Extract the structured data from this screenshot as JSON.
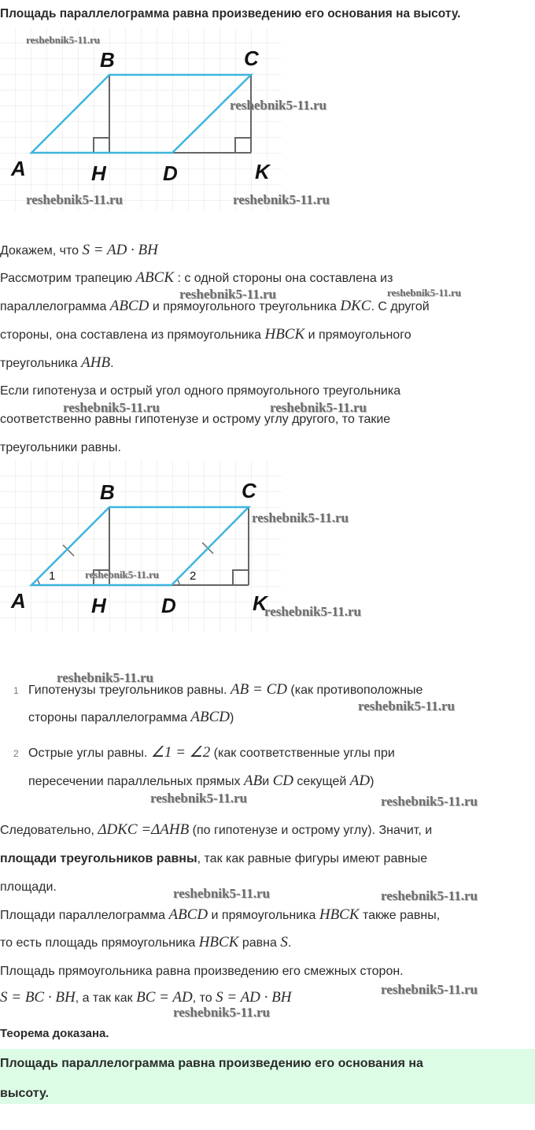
{
  "title": "Площадь параллелограмма равна произведению его основания на высоту.",
  "figure1": {
    "labels": {
      "A": "A",
      "B": "B",
      "C": "C",
      "D": "D",
      "H": "H",
      "K": "K"
    },
    "colors": {
      "parallelogram": "#3db5df",
      "auxiliary": "#666666",
      "grid": "#e3e3e3"
    }
  },
  "figure2": {
    "labels": {
      "A": "A",
      "B": "B",
      "C": "C",
      "D": "D",
      "H": "H",
      "K": "K",
      "angle1": "1",
      "angle2": "2"
    }
  },
  "p1": {
    "t1": "Докажем, что ",
    "m1": "S = AD · BH"
  },
  "p2": {
    "t1": "Рассмотрим трапецию ",
    "m1": "ABCK",
    "t2": " : с одной стороны она составлена из",
    "t3": "параллелограмма ",
    "m2": "ABCD",
    "t4": " и прямоугольного треугольника ",
    "m3": "DKC",
    "t5": ". С другой",
    "t6": "стороны, она составлена из прямоугольника ",
    "m4": "HBCK",
    "t7": " и прямоугольного",
    "t8": "треугольника ",
    "m5": "AHB",
    "t9": "."
  },
  "p3": {
    "l1": "Если гипотенуза и острый угол одного прямоугольного треугольника",
    "l2": "соответственно равны гипотенузе и острому углу другого, то такие",
    "l3": "треугольники равны."
  },
  "list": [
    {
      "num": "1",
      "t1": "Гипотенузы треугольников равны. ",
      "m1": "AB = CD",
      "t2": " (как противоположные",
      "t3": "стороны параллелограмма ",
      "m2": "ABCD",
      "t4": ")"
    },
    {
      "num": "2",
      "t1": "Острые углы равны. ",
      "m1": "∠1 = ∠2",
      "t2": " (как соответственные углы при",
      "t3": "пересечении параллельных прямых ",
      "m2": "AB",
      "t4": "и ",
      "m3": "CD",
      "t5": " секущей ",
      "m4": "AD",
      "t6": ")"
    }
  ],
  "p4": {
    "t1": "Следовательно, ",
    "m1": "ΔDKC =ΔAHB",
    "t2": " (по гипотенузе и острому углу). Значит, и",
    "b1": "площади треугольников равны",
    "t3": ", так как равные фигуры имеют равные",
    "t4": "площади."
  },
  "p5": {
    "t1": "Площади параллелограмма ",
    "m1": "ABCD",
    "t2": " и прямоугольника ",
    "m2": "HBCK",
    "t3": " также равны,",
    "t4": "то есть площадь прямоугольника ",
    "m3": "HBCK",
    "t5": " равна ",
    "m4": "S",
    "t6": "."
  },
  "p6": {
    "l1": "Площадь прямоугольника равна произведению его смежных сторон.",
    "m1": "S = BC · BH",
    "t1": ", а так как ",
    "m2": "BC = AD",
    "t2": ", то ",
    "m3": "S = AD · BH"
  },
  "conclusion": "Теорема доказана.",
  "highlight": {
    "l1": "Площадь параллелограмма равна произведению его основания на",
    "l2": "высоту.",
    "bg": "#dcfce6"
  },
  "watermark": "reshebnik5-11.ru"
}
